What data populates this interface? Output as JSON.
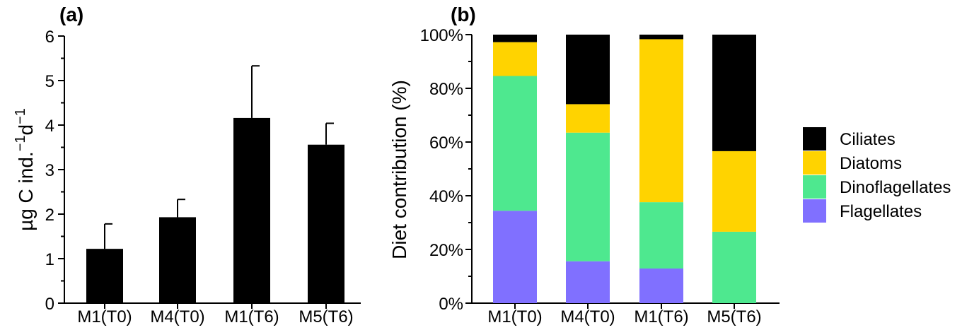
{
  "chart_data": [
    {
      "panel": "(a)",
      "type": "bar",
      "ylabel": "µg C ind.",
      "ylabel_sup1": "−1",
      "ylabel_mid": "d",
      "ylabel_sup2": "−1",
      "categories": [
        "M1(T0)",
        "M4(T0)",
        "M1(T6)",
        "M5(T6)"
      ],
      "values": [
        1.22,
        1.93,
        4.16,
        3.56
      ],
      "errors": [
        0.56,
        0.4,
        1.17,
        0.48
      ],
      "ylim": [
        0,
        6
      ],
      "yticks": [
        "0",
        "1",
        "2",
        "3",
        "4",
        "5",
        "6"
      ],
      "color": "#000000"
    },
    {
      "panel": "(b)",
      "type": "bar",
      "stacked": true,
      "ylabel": "Diet contribution (%)",
      "categories": [
        "M1(T0)",
        "M4(T0)",
        "M1(T6)",
        "M5(T6)"
      ],
      "ylim": [
        0,
        100
      ],
      "yticks": [
        "0%",
        "20%",
        "40%",
        "60%",
        "80%",
        "100%"
      ],
      "legend_position": "right",
      "series": [
        {
          "name": "Flagellates",
          "color": "#8070FF",
          "values": [
            34.4,
            15.6,
            12.9,
            0
          ]
        },
        {
          "name": "Dinoflagellates",
          "color": "#4EE88F",
          "values": [
            50.2,
            47.9,
            24.7,
            26.6
          ]
        },
        {
          "name": "Diatoms",
          "color": "#FFD300",
          "values": [
            12.6,
            10.6,
            60.7,
            30.0
          ]
        },
        {
          "name": "Ciliates",
          "color": "#000000",
          "values": [
            2.8,
            25.9,
            1.7,
            43.4
          ]
        }
      ]
    }
  ]
}
